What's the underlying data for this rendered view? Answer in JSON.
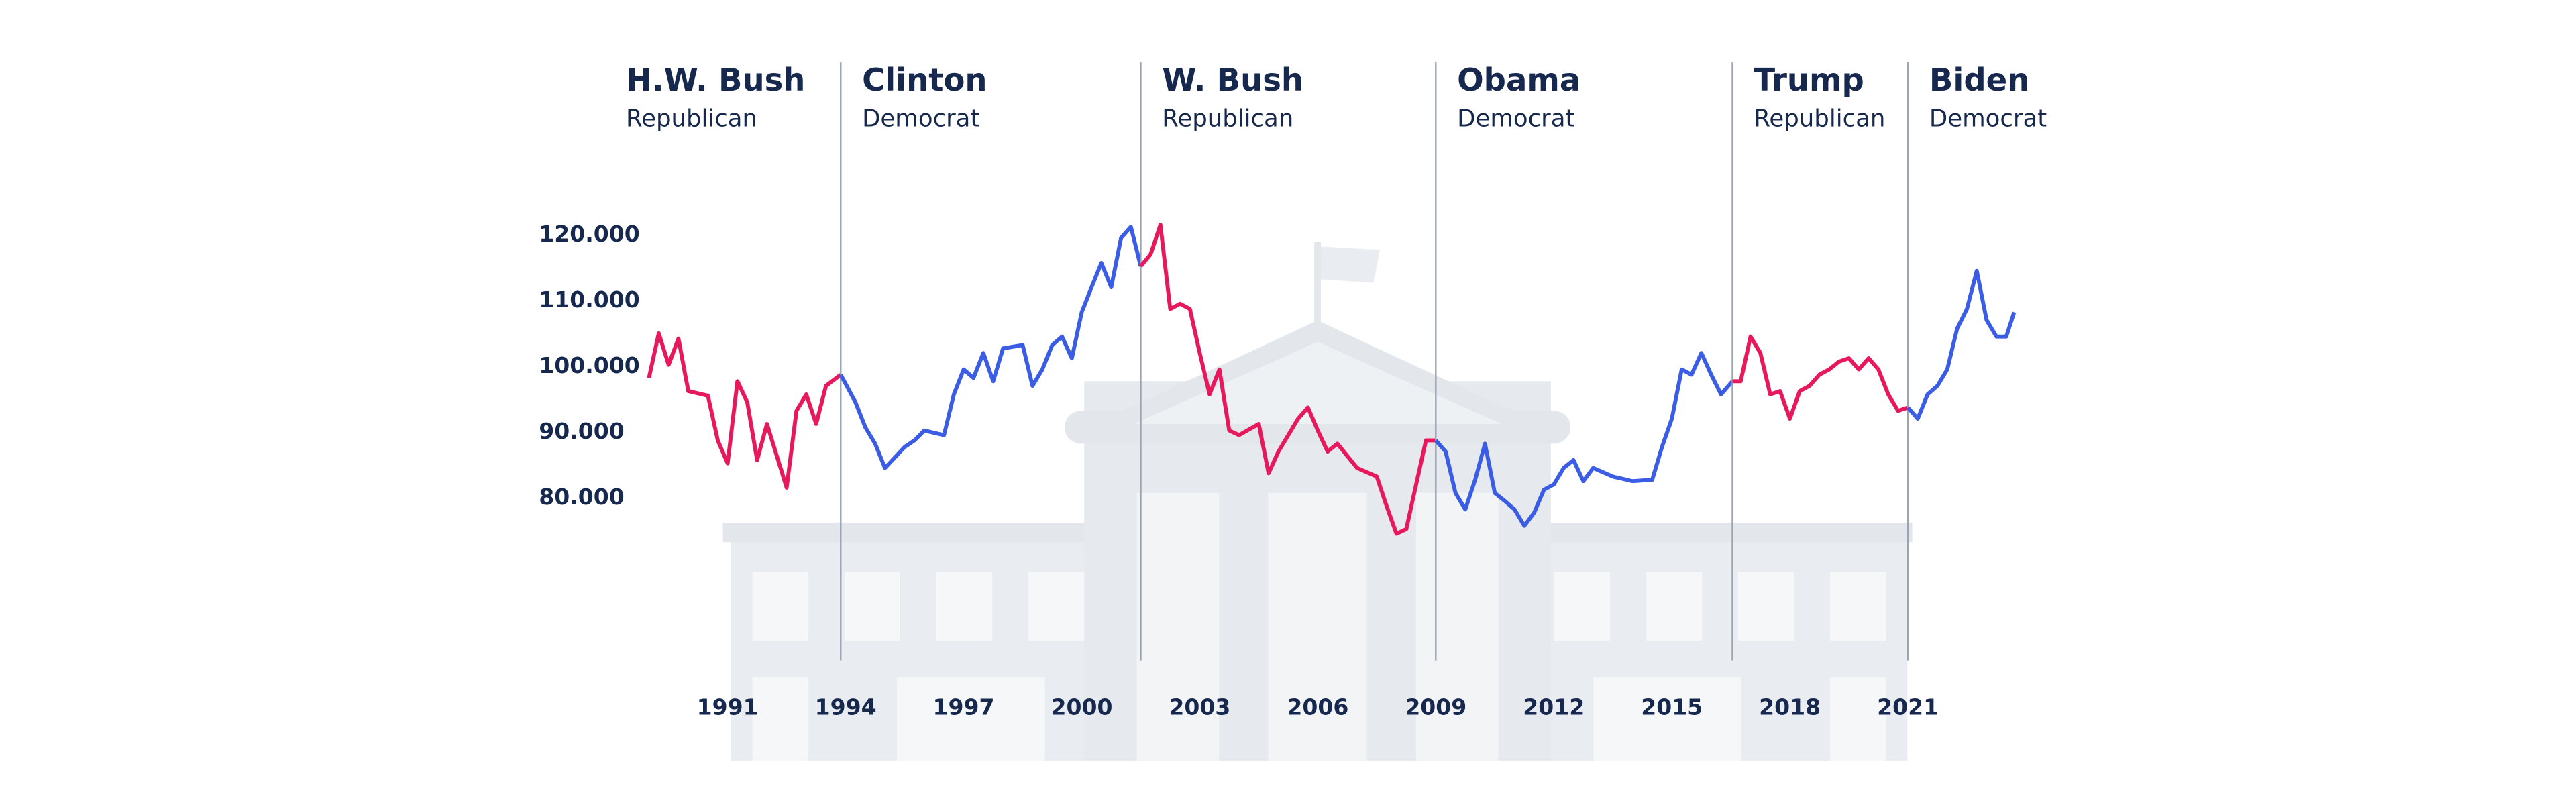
{
  "chart_data": {
    "type": "line",
    "xlim": [
      1989,
      2023.7
    ],
    "xticks": [
      1991,
      1994,
      1997,
      2000,
      2003,
      2006,
      2009,
      2012,
      2015,
      2018,
      2021
    ],
    "ylim": [
      70000,
      125000
    ],
    "yticks": [
      {
        "value": 80000,
        "label": "80.000"
      },
      {
        "value": 90000,
        "label": "90.000"
      },
      {
        "value": 100000,
        "label": "100.000"
      },
      {
        "value": 110000,
        "label": "110.000"
      },
      {
        "value": 120000,
        "label": "120.000"
      }
    ],
    "series": [
      {
        "name": "H.W. Bush",
        "party": "Republican",
        "color": "#e8185c",
        "x": [
          1989.0,
          1989.25,
          1989.5,
          1989.75,
          1990.0,
          1990.5,
          1990.75,
          1991.0,
          1991.25,
          1991.5,
          1991.75,
          1992.0,
          1992.5,
          1992.75,
          1993.0,
          1993.25,
          1993.5,
          1993.875
        ],
        "values": [
          98000,
          104800,
          100000,
          104000,
          96000,
          95300,
          88500,
          85000,
          97500,
          94300,
          85500,
          91000,
          81300,
          93000,
          95500,
          91000,
          96800,
          98500
        ]
      },
      {
        "name": "Clinton",
        "party": "Democrat",
        "color": "#3b5ce4",
        "x": [
          1993.875,
          1994.25,
          1994.5,
          1994.75,
          1995.0,
          1995.5,
          1995.75,
          1996.0,
          1996.5,
          1996.75,
          1997.0,
          1997.25,
          1997.5,
          1997.75,
          1998.0,
          1998.5,
          1998.75,
          1999.0,
          1999.25,
          1999.5,
          1999.75,
          2000.0,
          2000.25,
          2000.5,
          2000.75,
          2001.0,
          2001.25,
          2001.5
        ],
        "values": [
          98500,
          94300,
          90500,
          88000,
          84300,
          87500,
          88500,
          90000,
          89300,
          95500,
          99300,
          98000,
          101800,
          97500,
          102500,
          103000,
          96800,
          99300,
          103000,
          104300,
          101000,
          108000,
          111800,
          115500,
          111800,
          119300,
          121000,
          115000
        ]
      },
      {
        "name": "W. Bush",
        "party": "Republican",
        "color": "#e8185c",
        "x": [
          2001.5,
          2001.75,
          2002.0,
          2002.25,
          2002.5,
          2002.75,
          2003.0,
          2003.25,
          2003.5,
          2003.75,
          2004.0,
          2004.5,
          2004.75,
          2005.0,
          2005.5,
          2005.75,
          2006.0,
          2006.25,
          2006.5,
          2007.0,
          2007.5,
          2007.75,
          2008.0,
          2008.25,
          2008.5,
          2008.75,
          2009.0
        ],
        "values": [
          115000,
          116800,
          121300,
          108500,
          109300,
          108500,
          101800,
          95500,
          99300,
          90000,
          89300,
          91000,
          83500,
          86800,
          91800,
          93500,
          90000,
          86800,
          88000,
          84300,
          83000,
          78500,
          74300,
          75000,
          81800,
          88500,
          88500
        ]
      },
      {
        "name": "Obama",
        "party": "Democrat",
        "color": "#3b5ce4",
        "x": [
          2009.0,
          2009.25,
          2009.5,
          2009.75,
          2010.0,
          2010.25,
          2010.5,
          2010.75,
          2011.0,
          2011.25,
          2011.5,
          2011.75,
          2012.0,
          2012.25,
          2012.5,
          2012.75,
          2013.0,
          2013.5,
          2014.0,
          2014.5,
          2014.75,
          2015.0,
          2015.25,
          2015.5,
          2015.75,
          2016.0,
          2016.25,
          2016.54
        ],
        "values": [
          88500,
          86800,
          80500,
          78000,
          82500,
          88000,
          80500,
          79300,
          78000,
          75500,
          77500,
          81000,
          81800,
          84300,
          85500,
          82300,
          84300,
          83000,
          82300,
          82500,
          87500,
          91800,
          99300,
          98500,
          101800,
          98500,
          95500,
          97500
        ]
      },
      {
        "name": "Trump",
        "party": "Republican",
        "color": "#e8185c",
        "x": [
          2016.54,
          2016.75,
          2017.0,
          2017.25,
          2017.5,
          2017.75,
          2018.0,
          2018.25,
          2018.5,
          2018.75,
          2019.0,
          2019.25,
          2019.5,
          2019.75,
          2020.0,
          2020.25,
          2020.5,
          2020.75,
          2021.0
        ],
        "values": [
          97500,
          97500,
          104300,
          101800,
          95500,
          96000,
          91800,
          96000,
          96800,
          98500,
          99300,
          100500,
          101000,
          99300,
          101000,
          99300,
          95500,
          93000,
          93500
        ]
      },
      {
        "name": "Biden",
        "party": "Democrat",
        "color": "#3b5ce4",
        "x": [
          2021.0,
          2021.25,
          2021.5,
          2021.75,
          2022.0,
          2022.25,
          2022.5,
          2022.75,
          2023.0,
          2023.25,
          2023.5,
          2023.7
        ],
        "values": [
          93500,
          91800,
          95500,
          96800,
          99300,
          105500,
          108500,
          114300,
          106800,
          104300,
          104300,
          108000
        ]
      }
    ]
  }
}
